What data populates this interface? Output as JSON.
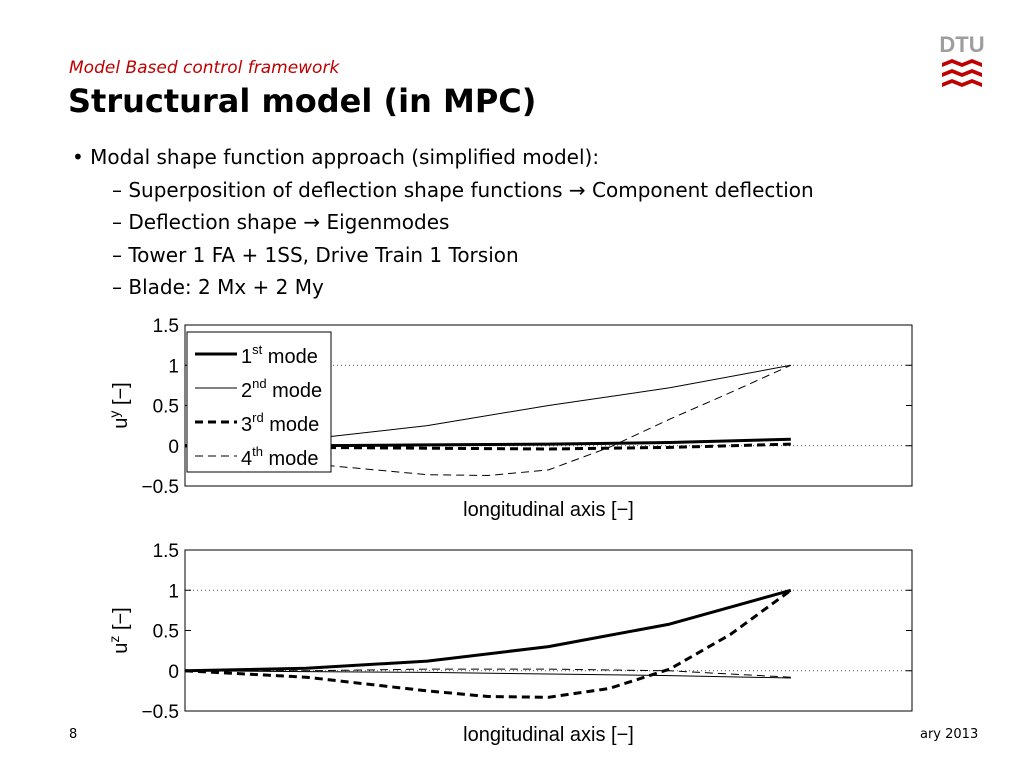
{
  "slide": {
    "subtitle": "Model Based control framework",
    "title": "Structural model (in MPC)",
    "logo_text": "DTU",
    "page_number": "8",
    "footer_date_fragment": "ary 2013",
    "accent_color": "#c00000",
    "logo_color": "#9e9e9e"
  },
  "bullets": [
    {
      "level": 1,
      "text": "• Modal shape function approach (simplified model):"
    },
    {
      "level": 2,
      "text": "– Superposition of deflection shape functions → Component deflection"
    },
    {
      "level": 2,
      "text": "– Deflection shape → Eigenmodes"
    },
    {
      "level": 2,
      "text": "– Tower 1 FA + 1SS, Drive Train 1 Torsion"
    },
    {
      "level": 2,
      "text": "– Blade: 2 Mx + 2 My"
    }
  ],
  "chart_data": [
    {
      "type": "line",
      "xlabel": "longitudinal axis [−]",
      "ylabel_base": "u",
      "ylabel_sup": "y",
      "ylabel_unit": " [−]",
      "xlim": [
        0,
        1.2
      ],
      "ylim": [
        -0.5,
        1.5
      ],
      "yticks": [
        "1.5",
        "1",
        "0.5",
        "0",
        "−0.5"
      ],
      "ytick_values": [
        1.5,
        1,
        0.5,
        0,
        -0.5
      ],
      "grid": "dotted horizontal at 0 and 1",
      "legend_position": "top-left",
      "series": [
        {
          "name_base": "1",
          "name_sup": "st",
          "name_rest": " mode",
          "style": "thick-solid",
          "x": [
            0,
            0.2,
            0.4,
            0.6,
            0.8,
            1.0
          ],
          "y": [
            0,
            0.0,
            0.01,
            0.02,
            0.04,
            0.08
          ]
        },
        {
          "name_base": "2",
          "name_sup": "nd",
          "name_rest": " mode",
          "style": "thin-solid",
          "x": [
            0,
            0.2,
            0.4,
            0.6,
            0.8,
            1.0
          ],
          "y": [
            0,
            0.08,
            0.25,
            0.5,
            0.72,
            1.0
          ]
        },
        {
          "name_base": "3",
          "name_sup": "rd",
          "name_rest": " mode",
          "style": "thick-dashed",
          "x": [
            0,
            0.2,
            0.4,
            0.6,
            0.8,
            1.0
          ],
          "y": [
            0,
            -0.02,
            -0.03,
            -0.04,
            -0.02,
            0.02
          ]
        },
        {
          "name_base": "4",
          "name_sup": "th",
          "name_rest": " mode",
          "style": "thin-dashed",
          "x": [
            0,
            0.2,
            0.4,
            0.5,
            0.6,
            0.7,
            0.8,
            0.9,
            1.0
          ],
          "y": [
            0,
            -0.22,
            -0.36,
            -0.37,
            -0.3,
            -0.02,
            0.33,
            0.66,
            1.0
          ]
        }
      ]
    },
    {
      "type": "line",
      "xlabel": "longitudinal axis [−]",
      "ylabel_base": "u",
      "ylabel_sup": "z",
      "ylabel_unit": " [−]",
      "xlim": [
        0,
        1.2
      ],
      "ylim": [
        -0.5,
        1.5
      ],
      "yticks": [
        "1.5",
        "1",
        "0.5",
        "0",
        "−0.5"
      ],
      "ytick_values": [
        1.5,
        1,
        0.5,
        0,
        -0.5
      ],
      "grid": "dotted horizontal at 0 and 1",
      "series": [
        {
          "style": "thick-solid",
          "x": [
            0,
            0.2,
            0.4,
            0.6,
            0.8,
            1.0
          ],
          "y": [
            0,
            0.03,
            0.12,
            0.3,
            0.58,
            1.0
          ]
        },
        {
          "style": "thin-solid",
          "x": [
            0,
            0.2,
            0.4,
            0.6,
            0.8,
            1.0
          ],
          "y": [
            0,
            -0.01,
            -0.02,
            -0.04,
            -0.06,
            -0.09
          ]
        },
        {
          "style": "thick-dashed",
          "x": [
            0,
            0.2,
            0.4,
            0.5,
            0.6,
            0.7,
            0.8,
            0.9,
            1.0
          ],
          "y": [
            0,
            -0.08,
            -0.25,
            -0.32,
            -0.33,
            -0.22,
            0.02,
            0.45,
            1.0
          ]
        },
        {
          "style": "thin-dashed",
          "x": [
            0,
            0.2,
            0.4,
            0.6,
            0.8,
            1.0
          ],
          "y": [
            0,
            0.0,
            0.02,
            0.02,
            0.0,
            -0.08
          ]
        }
      ]
    }
  ]
}
